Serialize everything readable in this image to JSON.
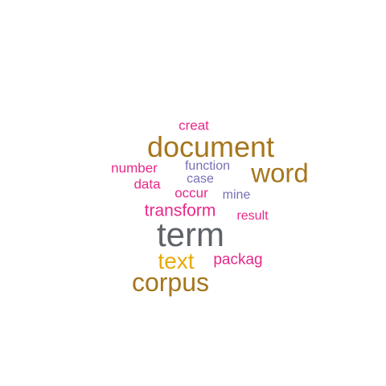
{
  "colors": {
    "background": "#ffffff",
    "gray": "#5f6368",
    "brown": "#a6761d",
    "gold": "#e6ab02",
    "magenta": "#e7298a",
    "purple": "#7570b3"
  },
  "words": [
    {
      "text": "term",
      "color": "#5f6368"
    },
    {
      "text": "document",
      "color": "#a6761d"
    },
    {
      "text": "word",
      "color": "#a6761d"
    },
    {
      "text": "corpus",
      "color": "#a6761d"
    },
    {
      "text": "text",
      "color": "#e6ab02"
    },
    {
      "text": "transform",
      "color": "#e7298a"
    },
    {
      "text": "packag",
      "color": "#e7298a"
    },
    {
      "text": "number",
      "color": "#e7298a"
    },
    {
      "text": "creat",
      "color": "#e7298a"
    },
    {
      "text": "data",
      "color": "#e7298a"
    },
    {
      "text": "occur",
      "color": "#e7298a"
    },
    {
      "text": "result",
      "color": "#e7298a"
    },
    {
      "text": "function",
      "color": "#7570b3"
    },
    {
      "text": "case",
      "color": "#7570b3"
    },
    {
      "text": "mine",
      "color": "#7570b3"
    }
  ]
}
